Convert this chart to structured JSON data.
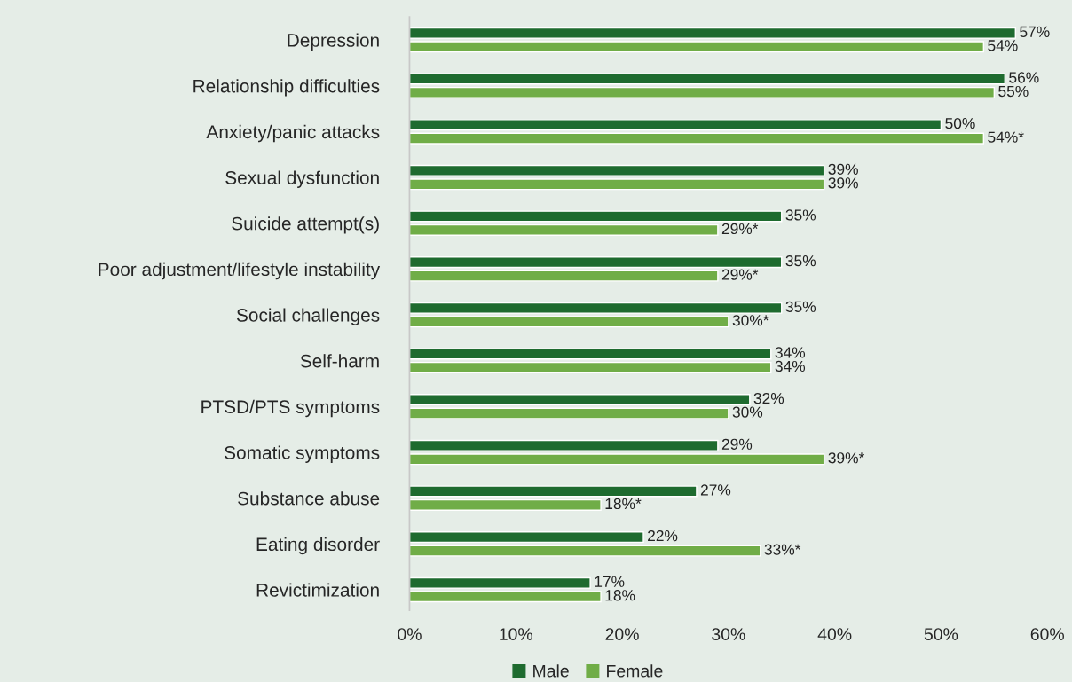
{
  "chart_data": {
    "type": "bar",
    "orientation": "horizontal",
    "categories": [
      "Depression",
      "Relationship difficulties",
      "Anxiety/panic attacks",
      "Sexual dysfunction",
      "Suicide attempt(s)",
      "Poor adjustment/lifestyle instability",
      "Social challenges",
      "Self-harm",
      "PTSD/PTS symptoms",
      "Somatic symptoms",
      "Substance abuse",
      "Eating disorder",
      "Revictimization"
    ],
    "series": [
      {
        "name": "Male",
        "color": "#1e6b2f",
        "values": [
          57,
          56,
          50,
          39,
          35,
          35,
          35,
          34,
          32,
          29,
          27,
          22,
          17
        ],
        "value_labels": [
          "57%",
          "56%",
          "50%",
          "39%",
          "35%",
          "35%",
          "35%",
          "34%",
          "32%",
          "29%",
          "27%",
          "22%",
          "17%"
        ]
      },
      {
        "name": "Female",
        "color": "#70ad47",
        "values": [
          54,
          55,
          54,
          39,
          29,
          29,
          30,
          34,
          30,
          39,
          18,
          33,
          18
        ],
        "value_labels": [
          "54%",
          "55%",
          "54%*",
          "39%",
          "29%*",
          "29%*",
          "30%*",
          "34%",
          "30%",
          "39%*",
          "18%*",
          "33%*",
          "18%"
        ]
      }
    ],
    "xlim": [
      0,
      60
    ],
    "xticks": [
      {
        "value": 0,
        "label": "0%"
      },
      {
        "value": 10,
        "label": "10%"
      },
      {
        "value": 20,
        "label": "20%"
      },
      {
        "value": 30,
        "label": "30%"
      },
      {
        "value": 40,
        "label": "40%"
      },
      {
        "value": 50,
        "label": "50%"
      },
      {
        "value": 60,
        "label": "60%"
      }
    ],
    "legend": "bottom",
    "grid": false
  }
}
